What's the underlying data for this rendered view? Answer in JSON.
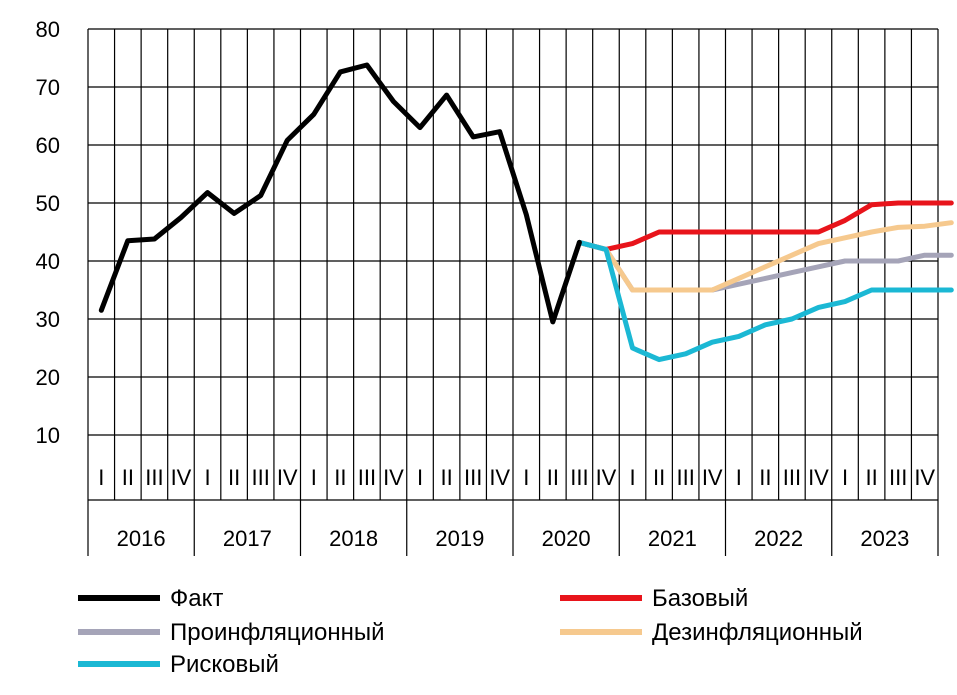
{
  "chart_data": {
    "type": "line",
    "ylim": [
      10,
      80
    ],
    "yticks": [
      10,
      20,
      30,
      40,
      50,
      60,
      70,
      80
    ],
    "quarters": [
      "I",
      "II",
      "III",
      "IV"
    ],
    "years": [
      "2016",
      "2017",
      "2018",
      "2019",
      "2020",
      "2021",
      "2022",
      "2023"
    ],
    "grid": true,
    "legend_position": "bottom",
    "series": [
      {
        "name": "Факт",
        "color": "#000000",
        "start_index": 0,
        "values": [
          31.5,
          43.5,
          43.8,
          47.5,
          51.8,
          48.2,
          51.3,
          60.8,
          65.3,
          72.6,
          73.8,
          67.5,
          63.0,
          68.6,
          61.4,
          62.3,
          48.0,
          29.5,
          43.2
        ]
      },
      {
        "name": "Базовый",
        "color": "#e8141b",
        "start_index": 18,
        "values": [
          43.2,
          42.0,
          43.0,
          45.0,
          45.0,
          45.0,
          45.0,
          45.0,
          45.0,
          45.0,
          47.0,
          49.7,
          50.0,
          50.0,
          50.0
        ]
      },
      {
        "name": "Проинфляционный",
        "color": "#a5a4b8",
        "start_index": 18,
        "values": [
          43.2,
          42.0,
          35.0,
          35.0,
          35.0,
          35.0,
          36.0,
          37.0,
          38.0,
          39.0,
          40.0,
          40.0,
          40.0,
          41.0,
          41.0
        ]
      },
      {
        "name": "Дезинфляционный",
        "color": "#f6c98e",
        "start_index": 18,
        "values": [
          43.2,
          42.0,
          35.0,
          35.0,
          35.0,
          35.0,
          37.0,
          39.0,
          41.0,
          43.0,
          44.0,
          45.0,
          45.8,
          46.0,
          46.6
        ]
      },
      {
        "name": "Рисковый",
        "color": "#1bb8d4",
        "start_index": 18,
        "values": [
          43.2,
          42.0,
          25.0,
          23.0,
          24.0,
          26.0,
          27.0,
          29.0,
          30.0,
          32.0,
          33.0,
          35.0,
          35.0,
          35.0,
          35.0
        ]
      }
    ]
  }
}
